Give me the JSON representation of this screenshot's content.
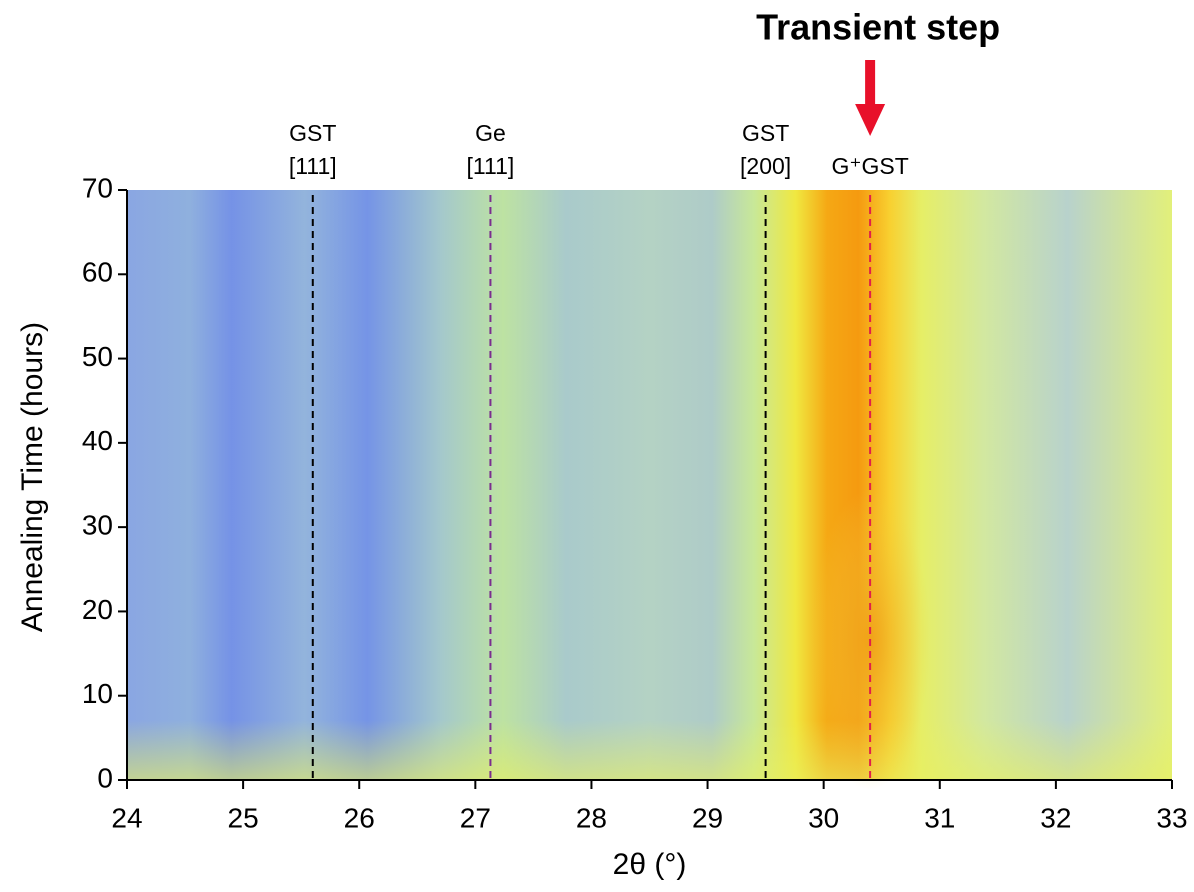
{
  "chart_data": {
    "type": "heatmap",
    "x_label": "2θ (°)",
    "y_label": "Annealing Time (hours)",
    "xlim": [
      24,
      33
    ],
    "ylim": [
      0,
      70
    ],
    "xticks": [
      24,
      25,
      26,
      27,
      28,
      29,
      30,
      31,
      32,
      33
    ],
    "yticks": [
      0,
      10,
      20,
      30,
      40,
      50,
      60,
      70
    ],
    "reference_lines": [
      {
        "x": 25.6,
        "label": [
          "GST",
          "[111]"
        ],
        "color": "#000000"
      },
      {
        "x": 27.13,
        "label": [
          "Ge",
          "[111]"
        ],
        "color": "#7b2d8e"
      },
      {
        "x": 29.5,
        "label": [
          "GST",
          "[200]"
        ],
        "color": "#000000"
      },
      {
        "x": 30.4,
        "label": [
          "G⁺GST"
        ],
        "color": "#e0204a"
      }
    ],
    "annotation": {
      "text": "Transient step",
      "x": 30.4,
      "color": "#e8102a"
    }
  }
}
